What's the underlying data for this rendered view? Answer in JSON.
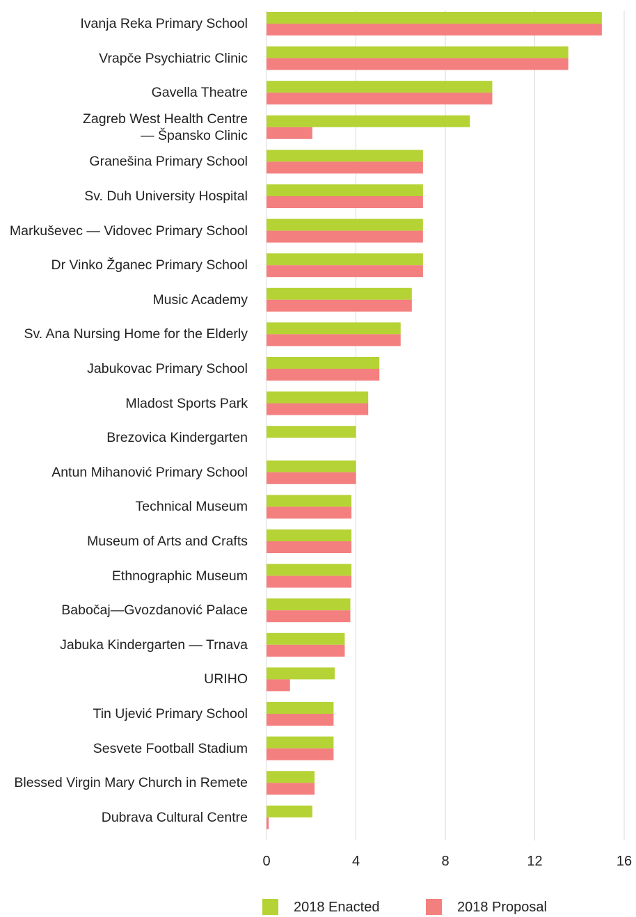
{
  "chart_data": {
    "type": "bar",
    "orientation": "horizontal",
    "categories": [
      "Ivanja Reka Primary School",
      "Vrapče Psychiatric Clinic",
      "Gavella Theatre",
      "Zagreb West Health Centre\n— Špansko Clinic",
      "Granešina Primary School",
      "Sv. Duh University Hospital",
      "Markuševec — Vidovec Primary School",
      "Dr Vinko Žganec Primary School",
      "Music Academy",
      "Sv. Ana Nursing Home for the Elderly",
      "Jabukovac Primary School",
      "Mladost Sports Park",
      "Brezovica Kindergarten",
      "Antun Mihanović Primary School",
      "Technical Museum",
      "Museum of Arts and Crafts",
      "Ethnographic Museum",
      "Babočaj—Gvozdanović Palace",
      "Jabuka Kindergarten — Trnava",
      "URIHO",
      "Tin Ujević Primary School",
      "Sesvete Football Stadium",
      "Blessed Virgin Mary Church in Remete",
      "Dubrava Cultural Centre"
    ],
    "series": [
      {
        "name": "2018 Enacted",
        "color": "#b5d334",
        "values": [
          15,
          13.5,
          10.1,
          9.1,
          7,
          7,
          7,
          7,
          6.5,
          6,
          5.05,
          4.55,
          4,
          4,
          3.8,
          3.8,
          3.8,
          3.75,
          3.5,
          3.05,
          3,
          3,
          2.15,
          2.05
        ]
      },
      {
        "name": "2018 Proposal",
        "color": "#f47f7f",
        "values": [
          15,
          13.5,
          10.1,
          2.05,
          7,
          7,
          7,
          7,
          6.5,
          6,
          5.05,
          4.55,
          null,
          4,
          3.8,
          3.8,
          3.8,
          3.75,
          3.5,
          1.05,
          3,
          3,
          2.15,
          0.1
        ]
      }
    ],
    "xlim": [
      0,
      16
    ],
    "xticks": [
      0,
      4,
      8,
      12,
      16
    ],
    "grid": true,
    "legend": "bottom"
  }
}
